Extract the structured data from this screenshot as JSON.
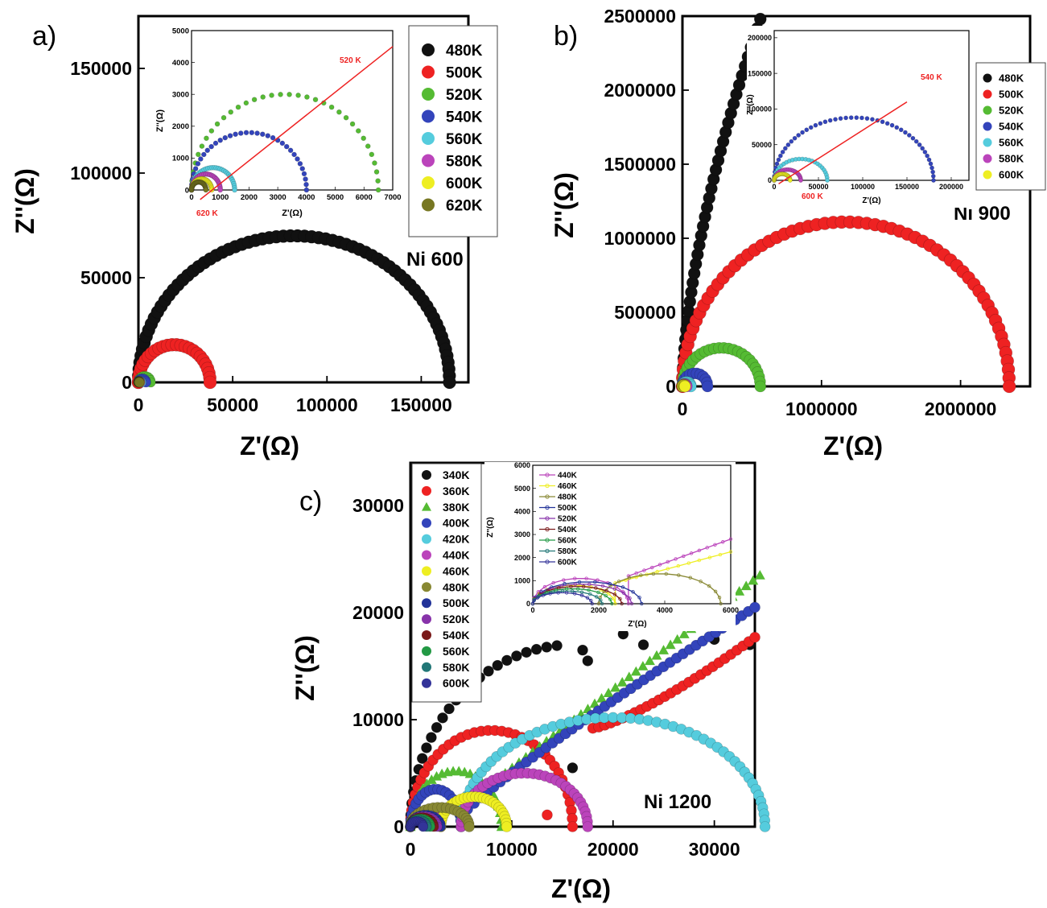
{
  "chart_data": [
    {
      "panel": "a)",
      "type": "scatter",
      "annotation": "Ni 600",
      "xlabel": "Z'(Ω)",
      "ylabel": "Z''(Ω)",
      "xlim": [
        0,
        175000
      ],
      "ylim": [
        0,
        175000
      ],
      "xticks": [
        0,
        50000,
        100000,
        150000
      ],
      "yticks": [
        0,
        50000,
        100000,
        150000
      ],
      "legend_position": "top-right",
      "series": [
        {
          "name": "480K",
          "color": "#111111",
          "marker": "circle",
          "arc": {
            "start": 0,
            "end": 165000,
            "peak": 70000
          }
        },
        {
          "name": "500K",
          "color": "#ee2222",
          "marker": "circle",
          "arc": {
            "start": 0,
            "end": 38000,
            "peak": 18000
          }
        },
        {
          "name": "520K",
          "color": "#55bb33",
          "marker": "circle",
          "arc": {
            "start": 0,
            "end": 6500,
            "peak": 3000
          }
        },
        {
          "name": "540K",
          "color": "#3344bb",
          "marker": "circle",
          "arc": {
            "start": 0,
            "end": 4000,
            "peak": 1800
          }
        },
        {
          "name": "560K",
          "color": "#55ccdd",
          "marker": "circle",
          "arc": {
            "start": 0,
            "end": 1500,
            "peak": 700
          }
        },
        {
          "name": "580K",
          "color": "#bb44bb",
          "marker": "circle",
          "arc": {
            "start": 0,
            "end": 1000,
            "peak": 500
          }
        },
        {
          "name": "600K",
          "color": "#eeee22",
          "marker": "circle",
          "arc": {
            "start": 0,
            "end": 700,
            "peak": 350
          }
        },
        {
          "name": "620K",
          "color": "#777722",
          "marker": "circle",
          "arc": {
            "start": 0,
            "end": 500,
            "peak": 250
          }
        }
      ],
      "inset": {
        "xlabel": "Z'(Ω)",
        "ylabel": "Z''(Ω)",
        "xlim": [
          0,
          7000
        ],
        "ylim": [
          0,
          5000
        ],
        "xticks": [
          0,
          1000,
          2000,
          3000,
          4000,
          5000,
          6000,
          7000
        ],
        "yticks": [
          0,
          1000,
          2000,
          3000,
          4000,
          5000
        ],
        "annotations": [
          "520 K",
          "620 K"
        ]
      }
    },
    {
      "panel": "b)",
      "type": "scatter",
      "annotation": "Ni 900",
      "xlabel": "Z'(Ω)",
      "ylabel": "Z''(Ω)",
      "xlim": [
        0,
        2500000
      ],
      "ylim": [
        0,
        2500000
      ],
      "xticks": [
        0,
        1000000,
        2000000
      ],
      "yticks": [
        0,
        500000,
        1000000,
        1500000,
        2000000,
        2500000
      ],
      "legend_position": "top-right",
      "series": [
        {
          "name": "480K",
          "color": "#111111",
          "marker": "circle",
          "note": "steep rising branch to about 2500000"
        },
        {
          "name": "500K",
          "color": "#ee2222",
          "marker": "circle",
          "arc": {
            "start": 0,
            "end": 2350000,
            "peak": 1110000
          }
        },
        {
          "name": "520K",
          "color": "#55bb33",
          "marker": "circle",
          "arc": {
            "start": 0,
            "end": 560000,
            "peak": 260000
          }
        },
        {
          "name": "540K",
          "color": "#3344bb",
          "marker": "circle",
          "arc": {
            "start": 0,
            "end": 180000,
            "peak": 88000
          }
        },
        {
          "name": "560K",
          "color": "#55ccdd",
          "marker": "circle",
          "arc": {
            "start": 0,
            "end": 60000,
            "peak": 30000
          }
        },
        {
          "name": "580K",
          "color": "#bb44bb",
          "marker": "circle",
          "arc": {
            "start": 0,
            "end": 30000,
            "peak": 15000
          }
        },
        {
          "name": "600K",
          "color": "#eeee22",
          "marker": "circle",
          "arc": {
            "start": 0,
            "end": 18000,
            "peak": 9000
          }
        }
      ],
      "inset": {
        "xlabel": "Z'(Ω)",
        "ylabel": "Z''(Ω)",
        "xlim": [
          0,
          220000
        ],
        "ylim": [
          0,
          210000
        ],
        "xticks": [
          0,
          50000,
          100000,
          150000,
          200000
        ],
        "yticks": [
          0,
          50000,
          100000,
          150000,
          200000
        ],
        "annotations": [
          "540 K",
          "600 K"
        ]
      }
    },
    {
      "panel": "c)",
      "type": "scatter",
      "annotation": "Ni 1200",
      "xlabel": "Z'(Ω)",
      "ylabel": "Z''(Ω)",
      "xlim": [
        0,
        34000
      ],
      "ylim": [
        0,
        34000
      ],
      "xticks": [
        0,
        10000,
        20000,
        30000
      ],
      "yticks": [
        0,
        10000,
        20000,
        30000
      ],
      "legend_position": "top-left",
      "series": [
        {
          "name": "340K",
          "color": "#111111",
          "marker": "circle"
        },
        {
          "name": "360K",
          "color": "#ee2222",
          "marker": "circle"
        },
        {
          "name": "380K",
          "color": "#55bb33",
          "marker": "triangle"
        },
        {
          "name": "400K",
          "color": "#3344bb",
          "marker": "circle"
        },
        {
          "name": "420K",
          "color": "#55ccdd",
          "marker": "circle"
        },
        {
          "name": "440K",
          "color": "#bb44bb",
          "marker": "circle"
        },
        {
          "name": "460K",
          "color": "#eeee22",
          "marker": "circle"
        },
        {
          "name": "480K",
          "color": "#888833",
          "marker": "circle"
        },
        {
          "name": "500K",
          "color": "#223399",
          "marker": "circle"
        },
        {
          "name": "520K",
          "color": "#8833aa",
          "marker": "circle"
        },
        {
          "name": "540K",
          "color": "#7a1a1a",
          "marker": "circle"
        },
        {
          "name": "560K",
          "color": "#229944",
          "marker": "circle"
        },
        {
          "name": "580K",
          "color": "#227777",
          "marker": "circle"
        },
        {
          "name": "600K",
          "color": "#333399",
          "marker": "circle"
        }
      ],
      "inset": {
        "xlabel": "Z'(Ω)",
        "ylabel": "Z''(Ω)",
        "xlim": [
          0,
          6000
        ],
        "ylim": [
          0,
          6000
        ],
        "xticks": [
          0,
          2000,
          4000,
          6000
        ],
        "yticks": [
          0,
          1000,
          2000,
          3000,
          4000,
          5000,
          6000
        ],
        "legend": [
          "440K",
          "460K",
          "480K",
          "500K",
          "520K",
          "540K",
          "560K",
          "580K",
          "600K"
        ]
      }
    }
  ]
}
